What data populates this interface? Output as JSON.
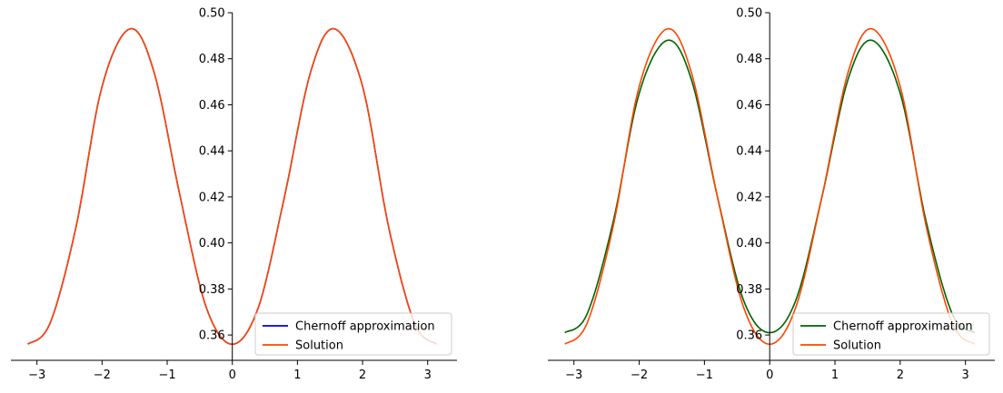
{
  "chart_data": [
    {
      "type": "line",
      "xlim": [
        -3.4,
        3.45
      ],
      "ylim": [
        0.349,
        0.5
      ],
      "x_ticks": [
        -3,
        -2,
        -1,
        0,
        1,
        2,
        3
      ],
      "x_tick_labels": [
        "−3",
        "−2",
        "−1",
        "0",
        "1",
        "2",
        "3"
      ],
      "y_ticks": [
        0.36,
        0.38,
        0.4,
        0.42,
        0.44,
        0.46,
        0.48,
        0.5
      ],
      "y_tick_labels": [
        "0.36",
        "0.38",
        "0.40",
        "0.42",
        "0.44",
        "0.46",
        "0.48",
        "0.50"
      ],
      "grid": false,
      "legend_position": "lower-right",
      "series": [
        {
          "name": "Chernoff approximation",
          "color": "#0000cc",
          "x": [
            -3.14,
            -2.8,
            -2.4,
            -2.0,
            -1.57,
            -1.2,
            -0.8,
            -0.4,
            0.0,
            0.4,
            0.8,
            1.2,
            1.57,
            2.0,
            2.4,
            2.8,
            3.14
          ],
          "y": [
            0.356,
            0.365,
            0.407,
            0.468,
            0.493,
            0.474,
            0.42,
            0.372,
            0.356,
            0.372,
            0.42,
            0.474,
            0.493,
            0.468,
            0.407,
            0.365,
            0.356
          ]
        },
        {
          "name": "Solution",
          "color": "#ff4500",
          "x": [
            -3.14,
            -2.8,
            -2.4,
            -2.0,
            -1.57,
            -1.2,
            -0.8,
            -0.4,
            0.0,
            0.4,
            0.8,
            1.2,
            1.57,
            2.0,
            2.4,
            2.8,
            3.14
          ],
          "y": [
            0.356,
            0.365,
            0.407,
            0.468,
            0.493,
            0.474,
            0.42,
            0.372,
            0.356,
            0.372,
            0.42,
            0.474,
            0.493,
            0.468,
            0.407,
            0.365,
            0.356
          ]
        }
      ]
    },
    {
      "type": "line",
      "xlim": [
        -3.4,
        3.45
      ],
      "ylim": [
        0.349,
        0.5
      ],
      "x_ticks": [
        -3,
        -2,
        -1,
        0,
        1,
        2,
        3
      ],
      "x_tick_labels": [
        "−3",
        "−2",
        "−1",
        "0",
        "1",
        "2",
        "3"
      ],
      "y_ticks": [
        0.36,
        0.38,
        0.4,
        0.42,
        0.44,
        0.46,
        0.48,
        0.5
      ],
      "y_tick_labels": [
        "0.36",
        "0.38",
        "0.40",
        "0.42",
        "0.44",
        "0.46",
        "0.48",
        "0.50"
      ],
      "grid": false,
      "legend_position": "lower-right",
      "series": [
        {
          "name": "Chernoff approximation",
          "color": "#006400",
          "x": [
            -3.14,
            -2.8,
            -2.4,
            -2.0,
            -1.57,
            -1.2,
            -0.8,
            -0.4,
            0.0,
            0.4,
            0.8,
            1.2,
            1.57,
            2.0,
            2.4,
            2.8,
            3.14
          ],
          "y": [
            0.361,
            0.369,
            0.409,
            0.465,
            0.488,
            0.471,
            0.42,
            0.375,
            0.361,
            0.375,
            0.42,
            0.471,
            0.488,
            0.465,
            0.409,
            0.369,
            0.361
          ]
        },
        {
          "name": "Solution",
          "color": "#ff4500",
          "x": [
            -3.14,
            -2.8,
            -2.4,
            -2.0,
            -1.57,
            -1.2,
            -0.8,
            -0.4,
            0.0,
            0.4,
            0.8,
            1.2,
            1.57,
            2.0,
            2.4,
            2.8,
            3.14
          ],
          "y": [
            0.356,
            0.365,
            0.407,
            0.468,
            0.493,
            0.474,
            0.42,
            0.372,
            0.356,
            0.372,
            0.42,
            0.474,
            0.493,
            0.468,
            0.407,
            0.365,
            0.356
          ]
        }
      ]
    }
  ]
}
